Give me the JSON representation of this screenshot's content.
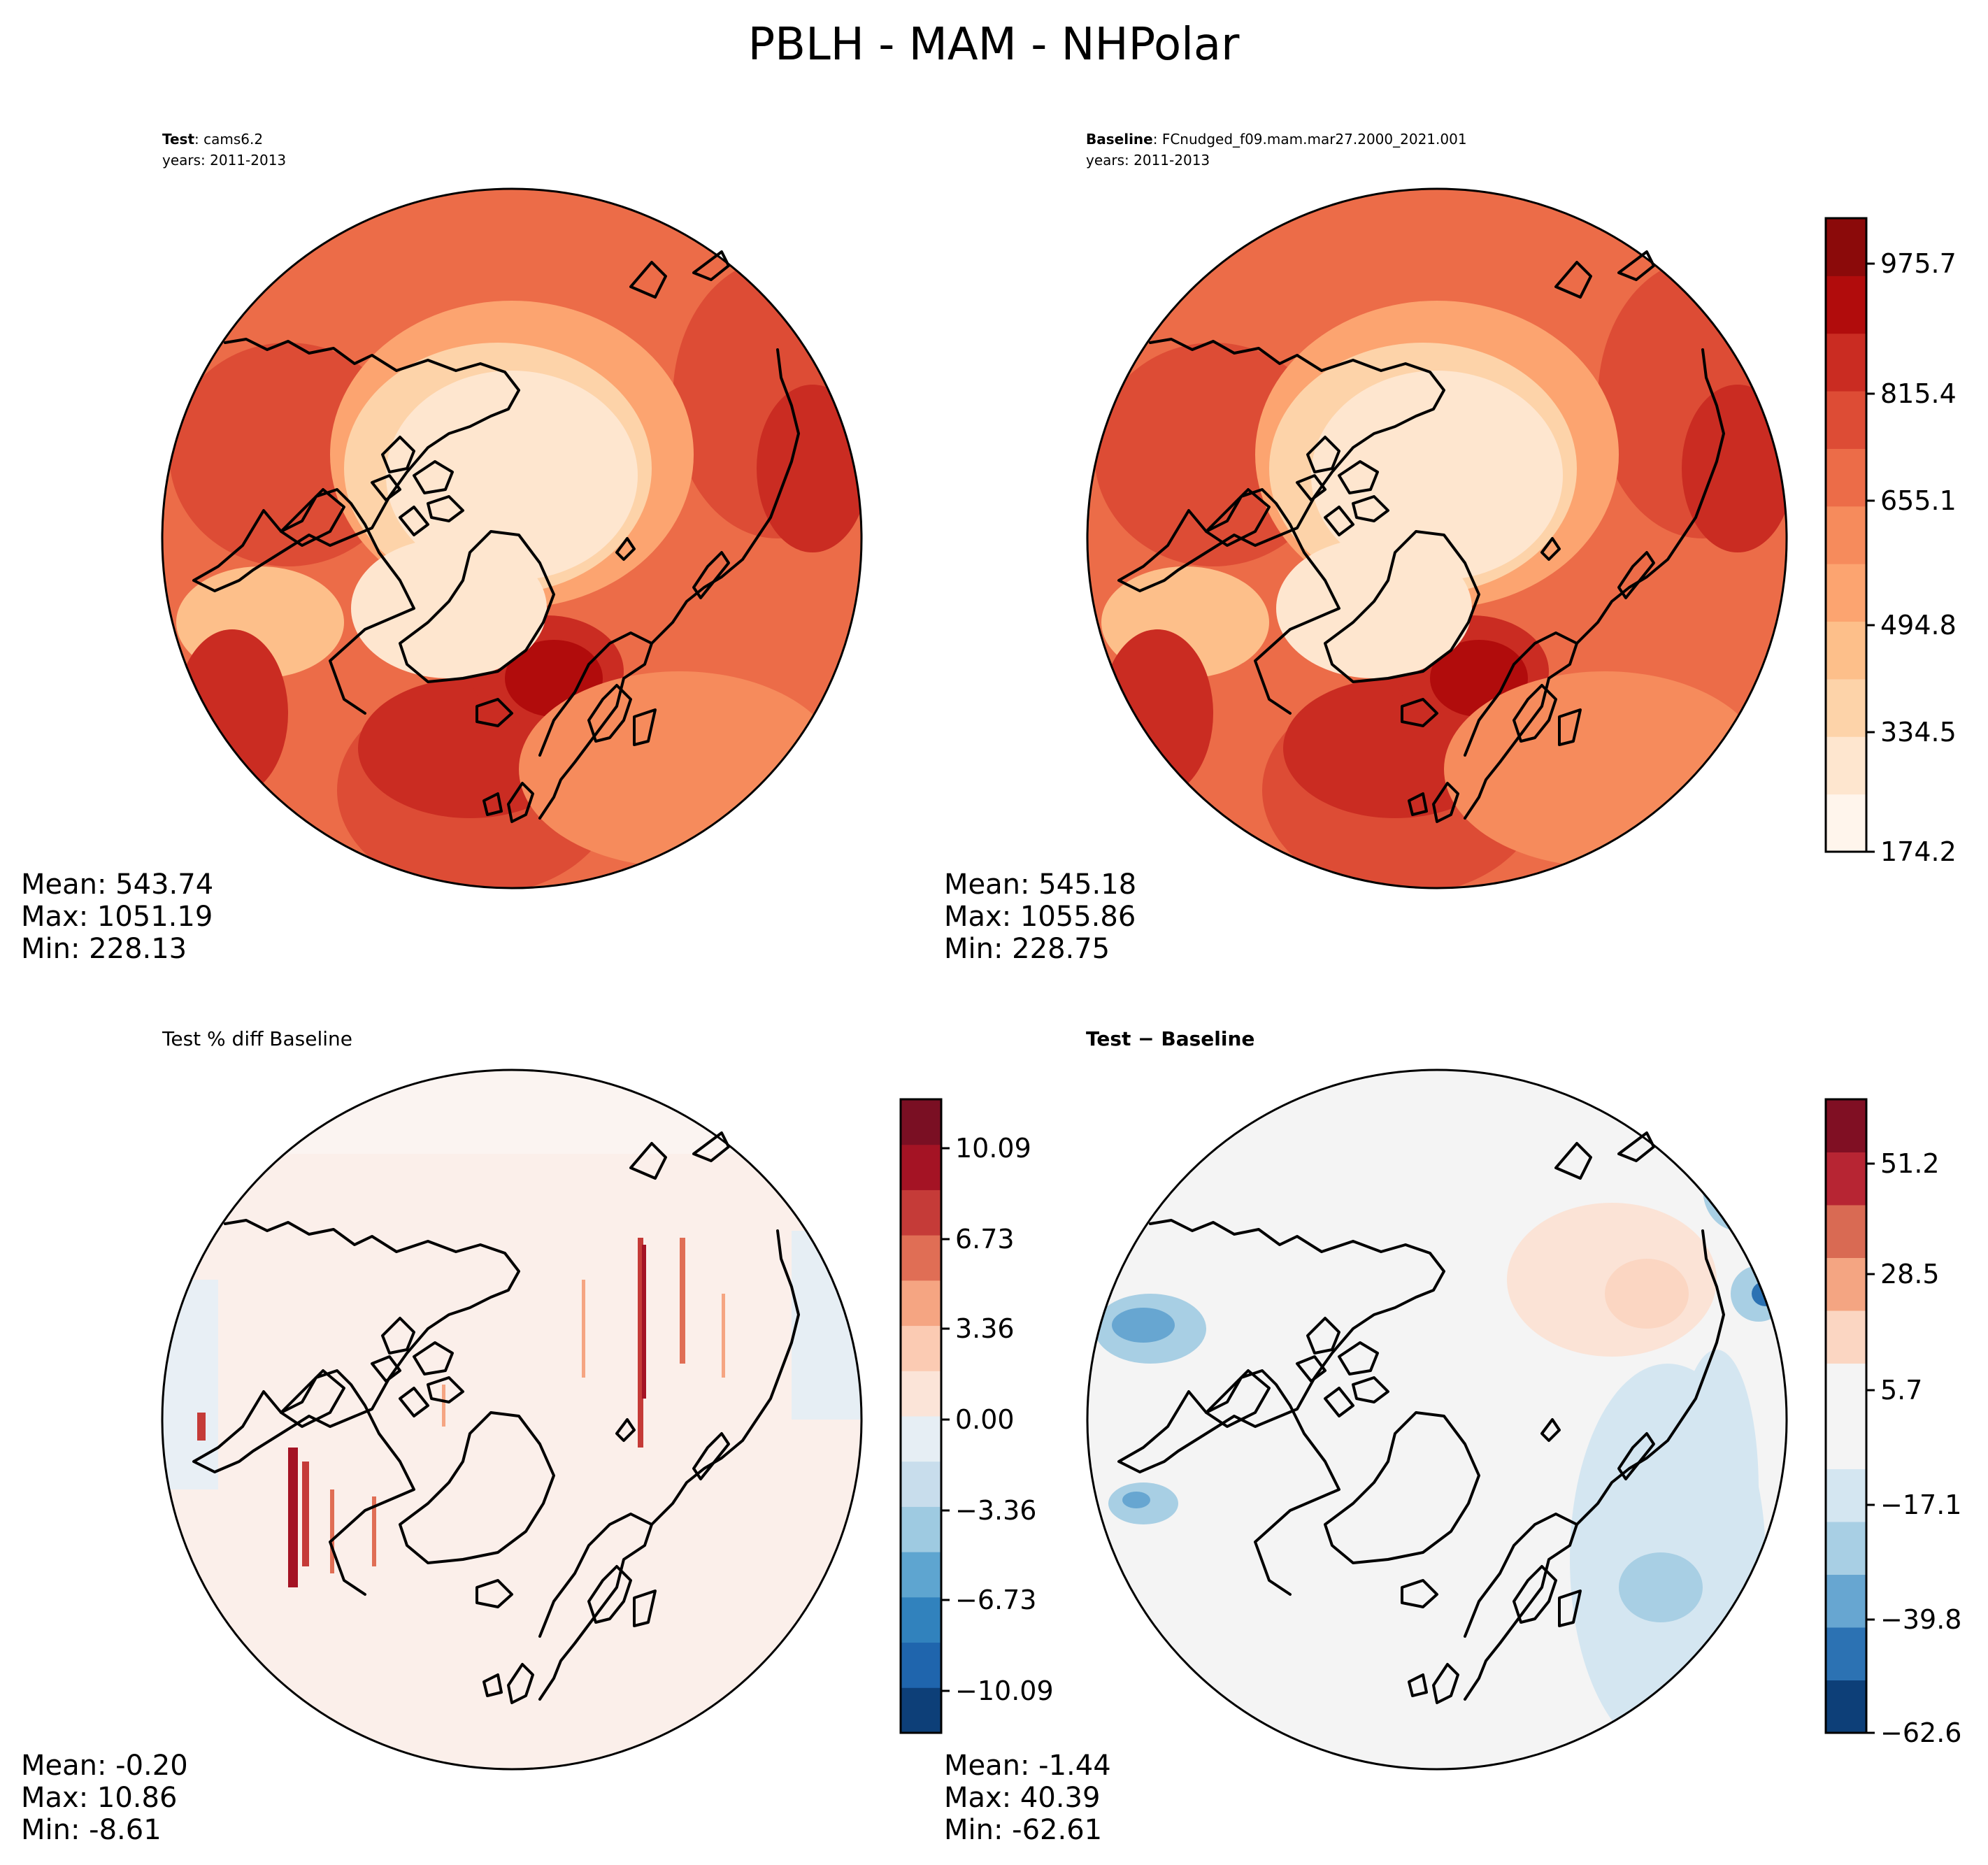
{
  "title": "PBLH - MAM - NHPolar",
  "panels": [
    {
      "id": "test",
      "header_bold": "Test",
      "header_rest": ": cams6.2",
      "years": "years: 2011-2013",
      "stats": [
        "Mean: 543.74",
        "Max: 1051.19",
        "Min: 228.13"
      ],
      "palette": "reds"
    },
    {
      "id": "baseline",
      "header_bold": "Baseline",
      "header_rest": ": FCnudged_f09.mam.mar27.2000_2021.001",
      "years": "years: 2011-2013",
      "stats": [
        "Mean: 545.18",
        "Max: 1055.86",
        "Min: 228.75"
      ],
      "palette": "reds"
    },
    {
      "id": "pctdiff",
      "header_plain": "Test % diff Baseline",
      "stats": [
        "Mean: -0.20",
        "Max: 10.86",
        "Min: -8.61"
      ],
      "palette": "rdbu"
    },
    {
      "id": "diff",
      "header_bold": "Test − Baseline",
      "stats": [
        "Mean: -1.44",
        "Max: 40.39",
        "Min: -62.61"
      ],
      "palette": "rdbu"
    }
  ],
  "colorbars": {
    "reds": {
      "ticks": [
        "975.7",
        "815.4",
        "655.1",
        "494.8",
        "334.5",
        "174.2"
      ],
      "colors": [
        "#fff5ec",
        "#fee6cf",
        "#fdd3a9",
        "#fdbf8a",
        "#fca470",
        "#f68b5c",
        "#ec6c48",
        "#dd4c35",
        "#ca2c22",
        "#b10c0c",
        "#8b0a0a"
      ]
    },
    "pctdiff": {
      "ticks": [
        "10.09",
        "6.73",
        "3.36",
        "0.00",
        "−3.36",
        "−6.73",
        "−10.09"
      ],
      "colors": [
        "#0d3f78",
        "#1f65ad",
        "#3182bd",
        "#5ea5d0",
        "#9ecae1",
        "#c8ddec",
        "#e6eef4",
        "#fbe4d8",
        "#fbcbb3",
        "#f5a582",
        "#e06e55",
        "#c53b38",
        "#a41324",
        "#7a0f23"
      ]
    },
    "diff": {
      "ticks": [
        "51.2",
        "28.5",
        "5.7",
        "−17.1",
        "−39.8",
        "−62.6"
      ],
      "colors": [
        "#0d3f78",
        "#2c72b3",
        "#67a6d1",
        "#a8cfe4",
        "#d4e6f1",
        "#f4f4f4",
        "#f4f4f4",
        "#fbd6c2",
        "#f4a582",
        "#d96a53",
        "#b72533",
        "#800f23"
      ]
    }
  },
  "chart_data": [
    {
      "type": "heatmap",
      "title": "Test: cams6.2 (years: 2011-2013)",
      "variable": "PBLH",
      "season": "MAM",
      "region": "NHPolar",
      "mean": 543.74,
      "max": 1051.19,
      "min": 228.13,
      "colorbar_range": [
        174.2,
        1056.0
      ]
    },
    {
      "type": "heatmap",
      "title": "Baseline: FCnudged_f09.mam.mar27.2000_2021.001 (years: 2011-2013)",
      "variable": "PBLH",
      "mean": 545.18,
      "max": 1055.86,
      "min": 228.75,
      "colorbar_range": [
        174.2,
        1056.0
      ]
    },
    {
      "type": "heatmap",
      "title": "Test % diff Baseline",
      "mean": -0.2,
      "max": 10.86,
      "min": -8.61,
      "colorbar_range": [
        -11.77,
        11.77
      ]
    },
    {
      "type": "heatmap",
      "title": "Test − Baseline",
      "mean": -1.44,
      "max": 40.39,
      "min": -62.61,
      "colorbar_range": [
        -62.6,
        62.6
      ]
    }
  ]
}
